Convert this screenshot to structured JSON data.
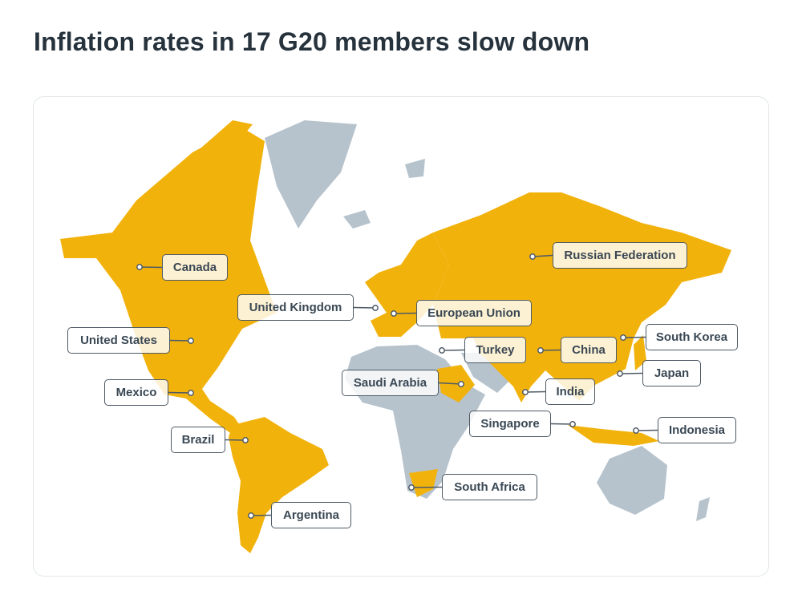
{
  "title": "Inflation rates in 17 G20 members slow down",
  "colors": {
    "member": "#F2B20C",
    "non_member": "#B6C3CC",
    "text": "#2E3D4A"
  },
  "members": [
    {
      "id": "canada",
      "label": "Canada"
    },
    {
      "id": "united-kingdom",
      "label": "United Kingdom"
    },
    {
      "id": "united-states",
      "label": "United States"
    },
    {
      "id": "mexico",
      "label": "Mexico"
    },
    {
      "id": "brazil",
      "label": "Brazil"
    },
    {
      "id": "argentina",
      "label": "Argentina"
    },
    {
      "id": "european-union",
      "label": "European Union"
    },
    {
      "id": "turkey",
      "label": "Turkey"
    },
    {
      "id": "saudi-arabia",
      "label": "Saudi Arabia"
    },
    {
      "id": "russian-federation",
      "label": "Russian Federation"
    },
    {
      "id": "china",
      "label": "China"
    },
    {
      "id": "india",
      "label": "India"
    },
    {
      "id": "south-korea",
      "label": "South Korea"
    },
    {
      "id": "japan",
      "label": "Japan"
    },
    {
      "id": "singapore",
      "label": "Singapore"
    },
    {
      "id": "indonesia",
      "label": "Indonesia"
    },
    {
      "id": "south-africa",
      "label": "South Africa"
    }
  ]
}
